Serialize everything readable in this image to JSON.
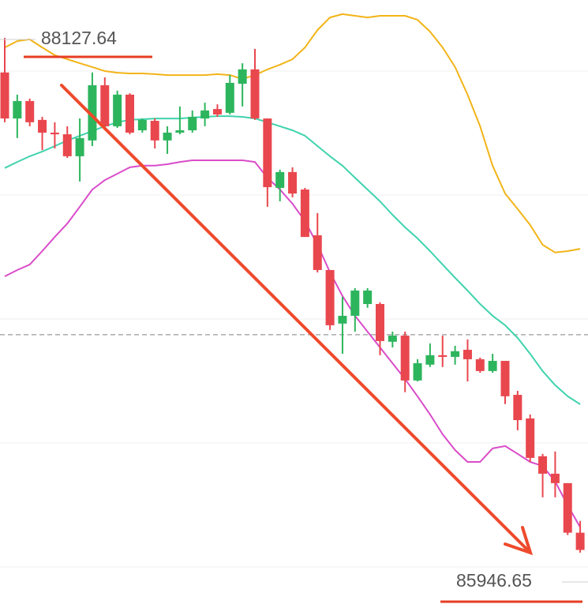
{
  "chart_data": {
    "type": "candlestick",
    "ylim": [
      85712,
      88288
    ],
    "up_color": "#2db55d",
    "down_color": "#e9474e",
    "open": [
      87981,
      87786,
      87860,
      87780,
      87726,
      87719,
      87626,
      87693,
      87927,
      87753,
      87887,
      87736,
      87776,
      87693,
      87726,
      87736,
      87786,
      87826,
      87810,
      87933,
      87994,
      87786,
      87492,
      87559,
      87485,
      87291,
      87144,
      86917,
      86950,
      87000,
      87000,
      86840,
      86866,
      86676,
      86743,
      86783,
      86776,
      86806,
      86766,
      86716,
      86759,
      86615,
      86515,
      86355,
      86281,
      86241,
      86031
    ],
    "high": [
      88127.64,
      87887,
      87870,
      87793,
      87770,
      87753,
      87786,
      87981,
      87960,
      87904,
      87893,
      87786,
      87786,
      87753,
      87837,
      87820,
      87853,
      87846,
      87970,
      88020,
      88081,
      87786,
      87569,
      87579,
      87492,
      87385,
      87144,
      87030,
      87067,
      87067,
      87007,
      86883,
      86883,
      86766,
      86833,
      86866,
      86823,
      86850,
      86773,
      86789,
      86759,
      86632,
      86532,
      86365,
      86375,
      86241,
      86081
    ],
    "low": [
      87770,
      87703,
      87753,
      87652,
      87659,
      87619,
      87519,
      87669,
      87736,
      87746,
      87719,
      87726,
      87659,
      87636,
      87719,
      87726,
      87753,
      87793,
      87803,
      87837,
      87780,
      87412,
      87435,
      87452,
      87284,
      87134,
      86890,
      86789,
      86883,
      86984,
      86783,
      86816,
      86626,
      86672,
      86733,
      86733,
      86743,
      86672,
      86709,
      86709,
      86576,
      86465,
      86331,
      86181,
      86181,
      86021,
      85946.65
    ],
    "close": [
      87786,
      87860,
      87770,
      87726,
      87719,
      87626,
      87703,
      87927,
      87753,
      87887,
      87726,
      87780,
      87693,
      87726,
      87736,
      87793,
      87820,
      87803,
      87937,
      87994,
      87786,
      87495,
      87559,
      87468,
      87284,
      87144,
      86910,
      86950,
      87057,
      87057,
      86843,
      86866,
      86676,
      86749,
      86783,
      86776,
      86800,
      86766,
      86716,
      86759,
      86609,
      86508,
      86348,
      86281,
      86241,
      86031,
      85958
    ],
    "lines": [
      {
        "color": "#f2b418",
        "values": [
          88087,
          88114,
          88121,
          88087,
          88054,
          88037,
          88020,
          88004,
          87987,
          87980,
          87977,
          87977,
          87974,
          87970,
          87970,
          87970,
          87970,
          87974,
          87970,
          87953,
          87970,
          87994,
          88014,
          88037,
          88087,
          88161,
          88214,
          88228,
          88221,
          88214,
          88221,
          88221,
          88221,
          88204,
          88154,
          88087,
          88004,
          87887,
          87753,
          87586,
          87468,
          87402,
          87335,
          87251,
          87218,
          87224,
          87234
        ]
      },
      {
        "color": "#3fd3ad",
        "values": [
          87576,
          87602,
          87626,
          87646,
          87669,
          87693,
          87713,
          87733,
          87753,
          87770,
          87780,
          87783,
          87786,
          87786,
          87786,
          87790,
          87793,
          87796,
          87796,
          87793,
          87786,
          87770,
          87753,
          87736,
          87713,
          87669,
          87626,
          87586,
          87535,
          87485,
          87435,
          87378,
          87325,
          87278,
          87224,
          87167,
          87111,
          87057,
          87000,
          86950,
          86910,
          86856,
          86789,
          86716,
          86656,
          86609,
          86575
        ]
      },
      {
        "color": "#d94cc9",
        "values": [
          87117,
          87144,
          87167,
          87224,
          87284,
          87341,
          87412,
          87485,
          87525,
          87552,
          87579,
          87586,
          87586,
          87592,
          87602,
          87609,
          87609,
          87609,
          87609,
          87609,
          87602,
          87535,
          87485,
          87425,
          87351,
          87251,
          87134,
          87034,
          86950,
          86883,
          86816,
          86749,
          86682,
          86609,
          86532,
          86448,
          86381,
          86331,
          86331,
          86388,
          86398,
          86365,
          86331,
          86314,
          86248,
          86147,
          86054
        ]
      }
    ],
    "price_line": 86870
  }
}
